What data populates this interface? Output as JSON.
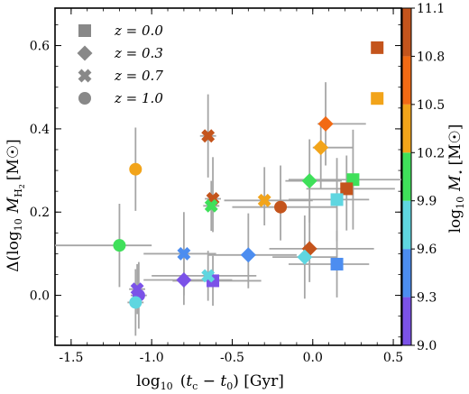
{
  "chart_data": {
    "type": "scatter",
    "xlabel": "log₁₀ (t_c − t₀) [Gyr]",
    "ylabel": "Δ(log₁₀ M_H₂ [M☉]",
    "xlim": [
      -1.6,
      0.55
    ],
    "ylim": [
      -0.12,
      0.69
    ],
    "x_ticks": [
      "-1.5",
      "-1.0",
      "-0.5",
      "0.0",
      "0.5"
    ],
    "x_tick_values": [
      -1.5,
      -1.0,
      -0.5,
      0.0,
      0.5
    ],
    "y_ticks": [
      "0.0",
      "0.2",
      "0.4",
      "0.6"
    ],
    "y_tick_values": [
      0.0,
      0.2,
      0.4,
      0.6
    ],
    "colorbar": {
      "label": "log₁₀ M⋆ [M☉]",
      "range": [
        9.0,
        11.1
      ],
      "ticks": [
        "9.0",
        "9.3",
        "9.6",
        "9.9",
        "10.2",
        "10.5",
        "10.8",
        "11.1"
      ],
      "tick_values": [
        9.0,
        9.3,
        9.6,
        9.9,
        10.2,
        10.5,
        10.8,
        11.1
      ],
      "colors": [
        "#7b52e8",
        "#4c8df0",
        "#5fd6e0",
        "#3fe05a",
        "#f2a41a",
        "#f26a14",
        "#c4541c"
      ]
    },
    "legend": {
      "placement": "top-left",
      "entries": [
        {
          "marker": "square",
          "label": "z = 0.0"
        },
        {
          "marker": "diamond",
          "label": "z = 0.3"
        },
        {
          "marker": "cross",
          "label": "z = 0.7"
        },
        {
          "marker": "circle",
          "label": "z = 1.0"
        }
      ]
    },
    "series": [
      {
        "marker": "square",
        "points": [
          {
            "x": 0.4,
            "y": 0.595,
            "mstar": 10.85,
            "xerr": [
              0.0,
              0.0
            ],
            "yerr": [
              0.0,
              0.0
            ]
          },
          {
            "x": 0.4,
            "y": 0.473,
            "mstar": 10.45,
            "xerr": [
              0.0,
              0.0
            ],
            "yerr": [
              0.0,
              0.0
            ]
          },
          {
            "x": 0.25,
            "y": 0.278,
            "mstar": 10.05,
            "xerr": [
              0.4,
              0.3
            ],
            "yerr": [
              0.12,
              0.12
            ]
          },
          {
            "x": 0.21,
            "y": 0.256,
            "mstar": 10.95,
            "xerr": [
              0.25,
              0.3
            ],
            "yerr": [
              0.1,
              0.08
            ]
          },
          {
            "x": 0.15,
            "y": 0.23,
            "mstar": 9.8,
            "xerr": [
              0.3,
              0.2
            ],
            "yerr": [
              0.1,
              0.1
            ]
          },
          {
            "x": 0.15,
            "y": 0.075,
            "mstar": 9.55,
            "xerr": [
              0.3,
              0.2
            ],
            "yerr": [
              0.08,
              0.08
            ]
          },
          {
            "x": -0.62,
            "y": 0.035,
            "mstar": 9.15,
            "xerr": [
              0.25,
              0.3
            ],
            "yerr": [
              0.06,
              0.06
            ]
          }
        ]
      },
      {
        "marker": "diamond",
        "points": [
          {
            "x": 0.08,
            "y": 0.412,
            "mstar": 10.75,
            "xerr": [
              0.05,
              0.25
            ],
            "yerr": [
              0.1,
              0.1
            ]
          },
          {
            "x": 0.05,
            "y": 0.355,
            "mstar": 10.35,
            "xerr": [
              0.05,
              0.2
            ],
            "yerr": [
              0.1,
              0.06
            ]
          },
          {
            "x": -0.02,
            "y": 0.275,
            "mstar": 10.0,
            "xerr": [
              0.15,
              0.2
            ],
            "yerr": [
              0.1,
              0.1
            ]
          },
          {
            "x": -0.02,
            "y": 0.112,
            "mstar": 10.95,
            "xerr": [
              0.25,
              0.4
            ],
            "yerr": [
              0.08,
              0.1
            ]
          },
          {
            "x": -0.4,
            "y": 0.097,
            "mstar": 9.45,
            "xerr": [
              0.25,
              0.3
            ],
            "yerr": [
              0.08,
              0.1
            ]
          },
          {
            "x": -0.8,
            "y": 0.037,
            "mstar": 9.15,
            "xerr": [
              0.25,
              0.3
            ],
            "yerr": [
              0.06,
              0.06
            ]
          },
          {
            "x": -0.05,
            "y": 0.092,
            "mstar": 9.75,
            "xerr": [
              0.2,
              0.2
            ],
            "yerr": [
              0.1,
              0.1
            ]
          }
        ]
      },
      {
        "marker": "cross",
        "points": [
          {
            "x": -0.65,
            "y": 0.383,
            "mstar": 10.95,
            "xerr": [
              0.05,
              0.05
            ],
            "yerr": [
              0.1,
              0.1
            ]
          },
          {
            "x": -0.3,
            "y": 0.228,
            "mstar": 10.35,
            "xerr": [
              0.25,
              0.3
            ],
            "yerr": [
              0.06,
              0.08
            ]
          },
          {
            "x": -0.62,
            "y": 0.232,
            "mstar": 10.8,
            "xerr": [
              0.05,
              0.05
            ],
            "yerr": [
              0.08,
              0.1
            ]
          },
          {
            "x": -0.63,
            "y": 0.215,
            "mstar": 10.05,
            "xerr": [
              0.05,
              0.05
            ],
            "yerr": [
              0.06,
              0.06
            ]
          },
          {
            "x": -0.8,
            "y": 0.1,
            "mstar": 9.5,
            "xerr": [
              0.25,
              0.2
            ],
            "yerr": [
              0.1,
              0.1
            ]
          },
          {
            "x": -1.09,
            "y": 0.015,
            "mstar": 9.15,
            "xerr": [
              0.05,
              0.05
            ],
            "yerr": [
              0.06,
              0.06
            ]
          },
          {
            "x": -0.65,
            "y": 0.047,
            "mstar": 9.8,
            "xerr": [
              0.35,
              0.3
            ],
            "yerr": [
              0.06,
              0.06
            ]
          }
        ]
      },
      {
        "marker": "circle",
        "points": [
          {
            "x": -1.1,
            "y": 0.303,
            "mstar": 10.35,
            "xerr": [
              0.03,
              0.03
            ],
            "yerr": [
              0.1,
              0.1
            ]
          },
          {
            "x": -0.2,
            "y": 0.212,
            "mstar": 10.8,
            "xerr": [
              0.3,
              0.35
            ],
            "yerr": [
              0.08,
              0.1
            ]
          },
          {
            "x": -1.2,
            "y": 0.12,
            "mstar": 10.0,
            "xerr": [
              0.4,
              0.2
            ],
            "yerr": [
              0.1,
              0.1
            ]
          },
          {
            "x": -1.08,
            "y": 0.0,
            "mstar": 9.15,
            "xerr": [
              0.05,
              0.05
            ],
            "yerr": [
              0.08,
              0.08
            ]
          },
          {
            "x": -1.1,
            "y": -0.017,
            "mstar": 9.8,
            "xerr": [
              0.05,
              0.05
            ],
            "yerr": [
              0.08,
              0.08
            ]
          }
        ]
      }
    ]
  }
}
